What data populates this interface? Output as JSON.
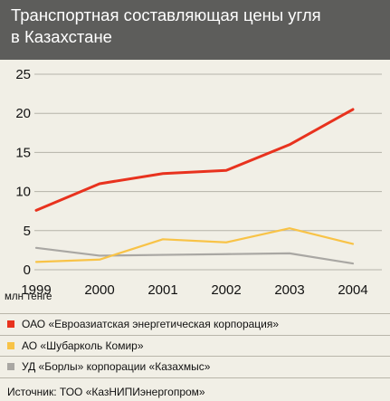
{
  "header": {
    "title_line1": "Транспортная составляющая цены угля",
    "title_line2": "в Казахстане"
  },
  "unit_label": "млн тенге",
  "colors": {
    "header_bg": "#5d5d5b",
    "background": "#f1efe6",
    "grid": "#b5b3a9",
    "series": [
      "#e8321e",
      "#f8c347",
      "#a9a7a3"
    ]
  },
  "chart_data": {
    "type": "line",
    "x": [
      "1999",
      "2000",
      "2001",
      "2002",
      "2003",
      "2004"
    ],
    "series": [
      {
        "name": "ОАО «Евроазиатская энергетическая корпорация»",
        "values": [
          7.6,
          11.0,
          12.3,
          12.7,
          16.0,
          20.5
        ]
      },
      {
        "name": "АО «Шубарколь Комир»",
        "values": [
          1.0,
          1.3,
          3.9,
          3.5,
          5.3,
          3.3
        ]
      },
      {
        "name": "УД «Борлы» корпорации «Казахмыс»",
        "values": [
          2.8,
          1.8,
          1.9,
          2.0,
          2.1,
          0.8
        ]
      }
    ],
    "yticks": [
      0,
      5,
      10,
      15,
      20,
      25
    ],
    "ylim": [
      0,
      25
    ],
    "grid": true,
    "legend_placement": "bottom"
  },
  "source": "Источник: ТОО «КазНИПИэнергопром»"
}
